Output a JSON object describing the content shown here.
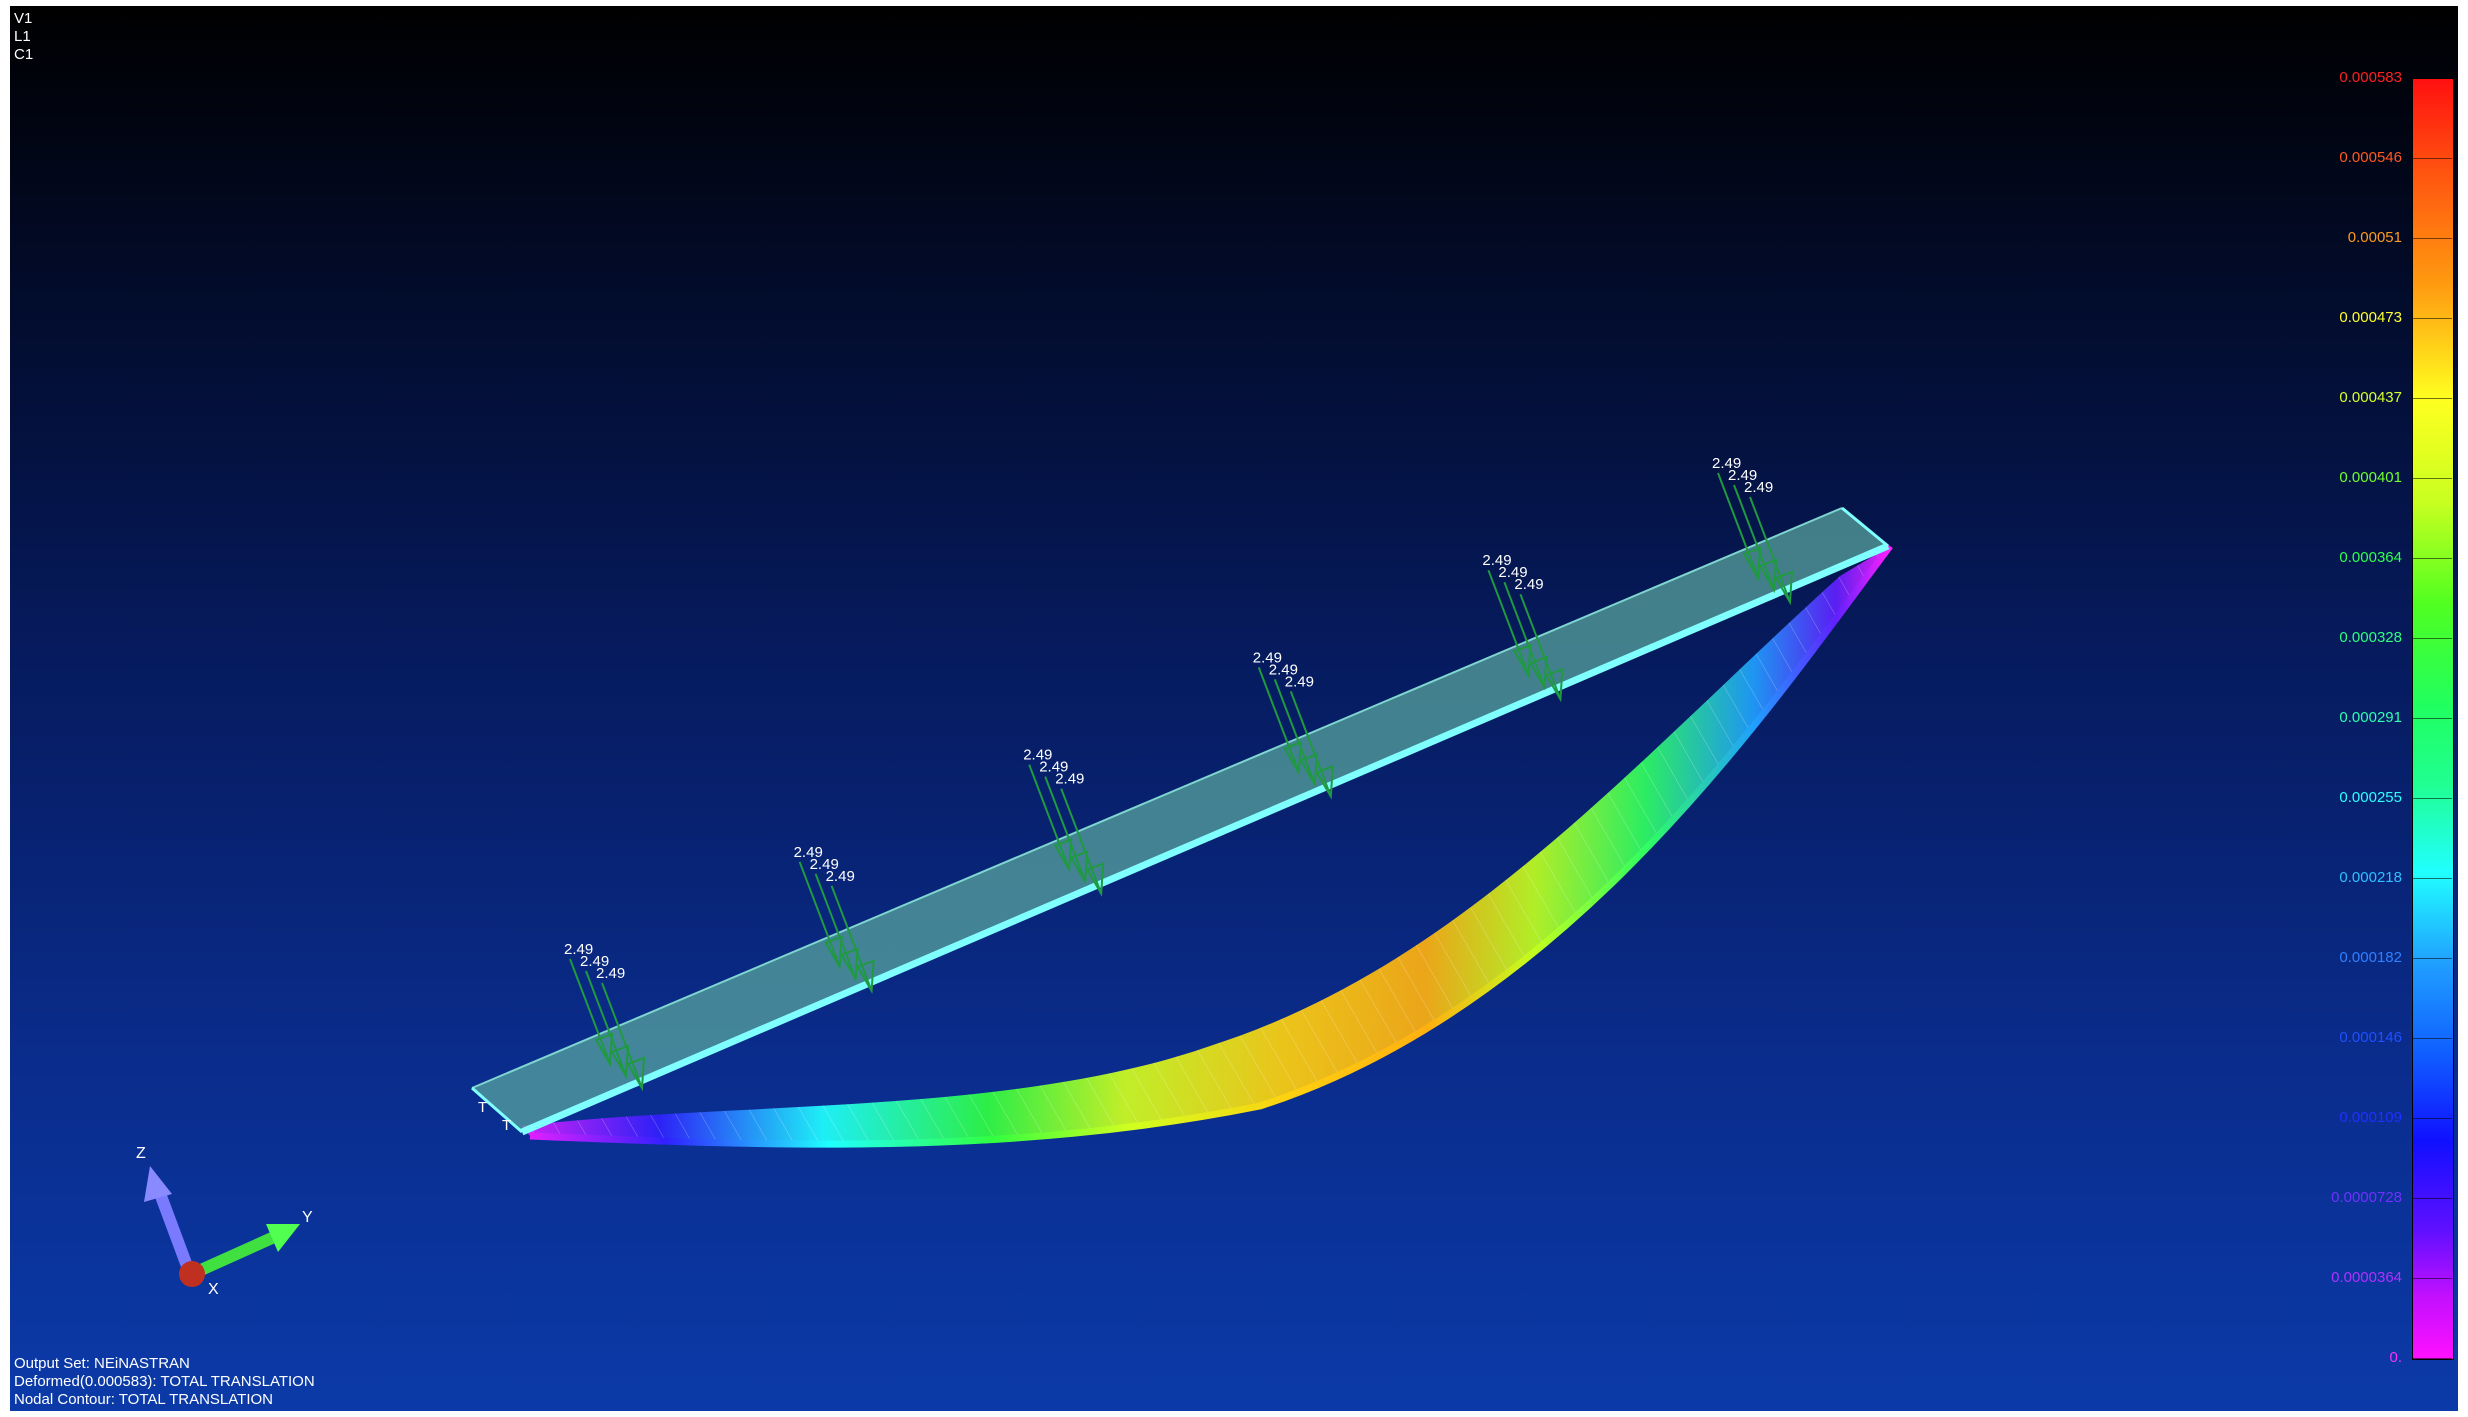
{
  "view_info": {
    "view": "V1",
    "layer": "L1",
    "color": "C1"
  },
  "output_info": {
    "output_set": "Output Set: NEiNASTRAN",
    "deformed": "Deformed(0.000583): TOTAL TRANSLATION",
    "contour": "Nodal Contour: TOTAL TRANSLATION"
  },
  "legend": {
    "values": [
      "0.000583",
      "0.000546",
      "0.00051",
      "0.000473",
      "0.000437",
      "0.000401",
      "0.000364",
      "0.000328",
      "0.000291",
      "0.000255",
      "0.000218",
      "0.000182",
      "0.000146",
      "0.000109",
      "0.0000728",
      "0.0000364",
      "0."
    ],
    "value_colors": [
      "#ff2020",
      "#ff5a20",
      "#ff9a20",
      "#ffff30",
      "#d8ff30",
      "#70ff30",
      "#30ff50",
      "#30ff80",
      "#30ffb0",
      "#30ffff",
      "#30c0ff",
      "#3080ff",
      "#2050ff",
      "#2030ff",
      "#7030ff",
      "#b030ff",
      "#ff30ff"
    ]
  },
  "loads": {
    "value": "2.49",
    "count": 6
  },
  "constraint_marker": "T",
  "triad": {
    "x": "X",
    "y": "Y",
    "z": "Z"
  },
  "colors": {
    "undeformed": "#5aa8a0",
    "undeformed_edge": "#80ffff",
    "load_arrow": "#1f9a40"
  }
}
